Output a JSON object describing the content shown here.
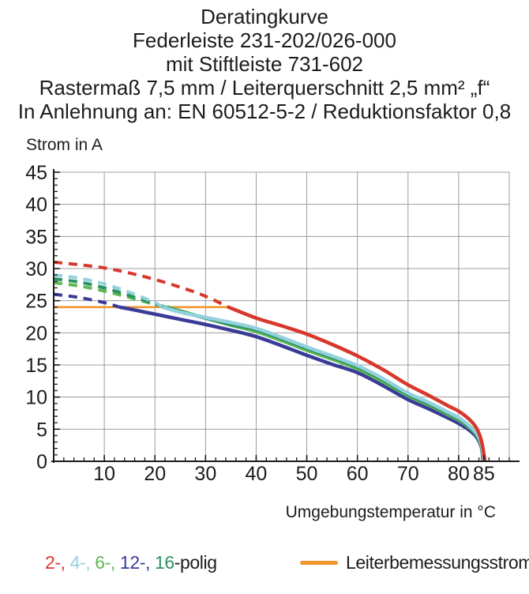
{
  "title_lines": [
    "Deratingkurve",
    "Federleiste 231-202/026-000",
    "mit Stiftleiste 731-602",
    "Rastermaß 7,5 mm / Leiterquerschnitt 2,5 mm² „f“",
    "In Anlehnung an: EN 60512-5-2 / Reduktionsfaktor 0,8"
  ],
  "y_axis_title": "Strom in A",
  "x_axis_title": "Umgebungstemperatur in °C",
  "legend": {
    "poles_segments": [
      {
        "text": "2-, ",
        "color": "#d7382b"
      },
      {
        "text": "4-, ",
        "color": "#93d2dd"
      },
      {
        "text": "6-, ",
        "color": "#5eb854"
      },
      {
        "text": "12-, ",
        "color": "#3a3a99"
      },
      {
        "text": "16",
        "color": "#2e9163"
      },
      {
        "text": "-polig",
        "color": "#1c1c1c"
      }
    ],
    "rated_current_label": "Leiterbemessungsstrom",
    "rated_current_color": "#f0962e"
  },
  "chart_data": {
    "type": "line",
    "title": "Deratingkurve",
    "xlabel": "Umgebungstemperatur in °C",
    "ylabel": "Strom in A",
    "xlim": [
      0,
      90
    ],
    "ylim": [
      0,
      45
    ],
    "x_ticks": [
      10,
      20,
      30,
      40,
      50,
      60,
      70,
      80,
      85
    ],
    "y_ticks": [
      0,
      5,
      10,
      15,
      20,
      25,
      30,
      35,
      40,
      45
    ],
    "grid": true,
    "grid_color": "#9c9c9c",
    "axis_color": "#1c1c1c",
    "legend_position": "bottom",
    "note": "curves dashed above rated conductor current 24 A, solid below; all fall to 0 A at 85 °C",
    "series": [
      {
        "name": "Leiterbemessungsstrom",
        "color": "#f0962e",
        "style": "solid",
        "width": 2.6,
        "points": [
          [
            0,
            24
          ],
          [
            34.7,
            24
          ]
        ]
      },
      {
        "name": "12-polig",
        "color": "#3a3a99",
        "dash_until_x": 13,
        "points": [
          [
            0,
            26
          ],
          [
            5,
            25.5
          ],
          [
            10,
            24.7
          ],
          [
            13,
            24
          ],
          [
            15,
            23.7
          ],
          [
            20,
            22.9
          ],
          [
            25,
            22.1
          ],
          [
            30,
            21.3
          ],
          [
            35,
            20.4
          ],
          [
            40,
            19.4
          ],
          [
            45,
            18.0
          ],
          [
            50,
            16.5
          ],
          [
            55,
            15.1
          ],
          [
            60,
            13.8
          ],
          [
            65,
            11.8
          ],
          [
            70,
            9.6
          ],
          [
            74,
            8.2
          ],
          [
            78,
            6.7
          ],
          [
            80,
            5.9
          ],
          [
            82,
            4.9
          ],
          [
            83.5,
            3.8
          ],
          [
            84.5,
            2.2
          ],
          [
            84.8,
            0
          ]
        ]
      },
      {
        "name": "6-polig",
        "color": "#5eb854",
        "dash_until_x": 22.5,
        "points": [
          [
            0,
            27.8
          ],
          [
            5,
            27.3
          ],
          [
            10,
            26.5
          ],
          [
            15,
            25.5
          ],
          [
            20,
            24.4
          ],
          [
            22.5,
            24
          ],
          [
            25,
            23.4
          ],
          [
            30,
            22.3
          ],
          [
            35,
            21.2
          ],
          [
            40,
            20.2
          ],
          [
            45,
            18.8
          ],
          [
            50,
            17.3
          ],
          [
            55,
            15.9
          ],
          [
            60,
            14.4
          ],
          [
            65,
            12.4
          ],
          [
            70,
            10.2
          ],
          [
            74,
            8.8
          ],
          [
            78,
            7.2
          ],
          [
            80,
            6.4
          ],
          [
            82,
            5.3
          ],
          [
            83.5,
            4.1
          ],
          [
            84.5,
            2.4
          ],
          [
            84.9,
            0
          ]
        ]
      },
      {
        "name": "16-polig",
        "color": "#2e9163",
        "dash_until_x": 22,
        "points": [
          [
            0,
            28.4
          ],
          [
            5,
            27.9
          ],
          [
            10,
            27.0
          ],
          [
            15,
            25.8
          ],
          [
            20,
            24.5
          ],
          [
            22,
            24
          ],
          [
            25,
            23.3
          ],
          [
            30,
            22.3
          ],
          [
            35,
            21.3
          ],
          [
            40,
            20.5
          ],
          [
            45,
            19.1
          ],
          [
            50,
            17.6
          ],
          [
            55,
            16.2
          ],
          [
            60,
            14.7
          ],
          [
            65,
            12.7
          ],
          [
            70,
            10.4
          ],
          [
            74,
            9.0
          ],
          [
            78,
            7.4
          ],
          [
            80,
            6.6
          ],
          [
            82,
            5.4
          ],
          [
            83.5,
            4.2
          ],
          [
            84.5,
            2.5
          ],
          [
            84.95,
            0
          ]
        ]
      },
      {
        "name": "4-polig",
        "color": "#93d2dd",
        "dash_until_x": 21.5,
        "points": [
          [
            0,
            29
          ],
          [
            5,
            28.5
          ],
          [
            10,
            27.6
          ],
          [
            15,
            26.3
          ],
          [
            20,
            24.7
          ],
          [
            21.5,
            24
          ],
          [
            25,
            23.2
          ],
          [
            30,
            22.4
          ],
          [
            35,
            21.6
          ],
          [
            40,
            20.7
          ],
          [
            45,
            19.3
          ],
          [
            50,
            17.8
          ],
          [
            55,
            16.4
          ],
          [
            60,
            14.9
          ],
          [
            65,
            12.9
          ],
          [
            70,
            10.6
          ],
          [
            74,
            9.2
          ],
          [
            78,
            7.6
          ],
          [
            80,
            6.8
          ],
          [
            82,
            5.6
          ],
          [
            83.5,
            4.4
          ],
          [
            84.5,
            2.7
          ],
          [
            85,
            0
          ]
        ]
      },
      {
        "name": "2-polig",
        "color": "#d7382b",
        "dash_until_x": 34.5,
        "points": [
          [
            0,
            31
          ],
          [
            5,
            30.6
          ],
          [
            10,
            30.1
          ],
          [
            15,
            29.3
          ],
          [
            20,
            28.3
          ],
          [
            25,
            27.1
          ],
          [
            30,
            25.7
          ],
          [
            34.5,
            24
          ],
          [
            40,
            22.3
          ],
          [
            45,
            21.1
          ],
          [
            50,
            19.8
          ],
          [
            55,
            18.2
          ],
          [
            60,
            16.4
          ],
          [
            65,
            14.3
          ],
          [
            70,
            11.9
          ],
          [
            74,
            10.3
          ],
          [
            78,
            8.6
          ],
          [
            80,
            7.8
          ],
          [
            82,
            6.6
          ],
          [
            83.5,
            5.2
          ],
          [
            84.5,
            3.2
          ],
          [
            85.2,
            0
          ]
        ]
      }
    ]
  }
}
